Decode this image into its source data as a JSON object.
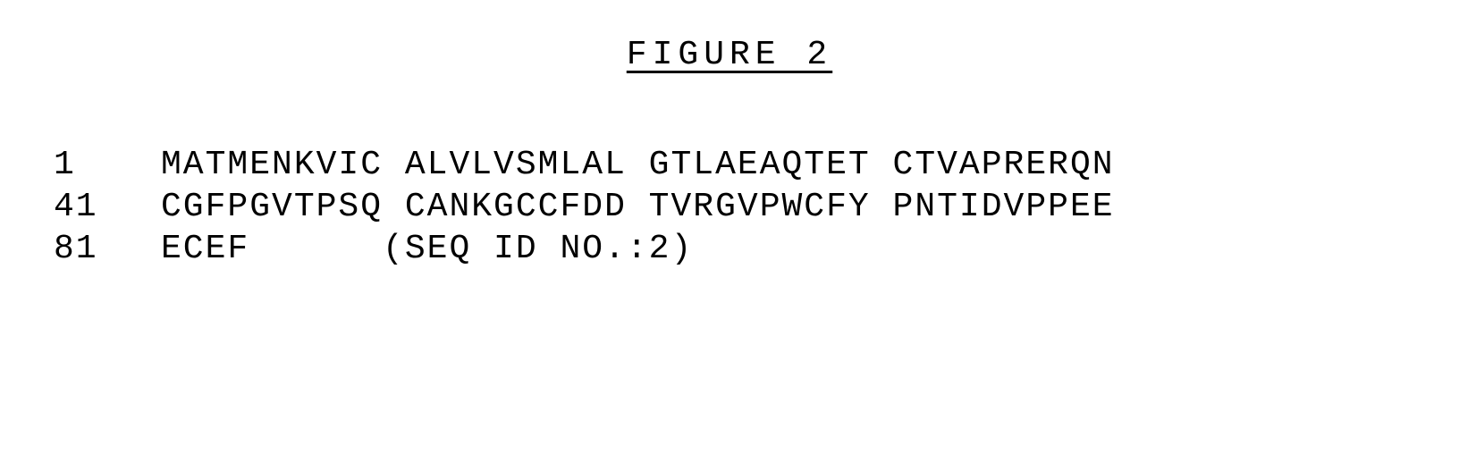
{
  "figure": {
    "title": "FIGURE 2"
  },
  "sequence": {
    "rows": [
      {
        "position": "1",
        "line": "MATMENKVIC ALVLVSMLAL GTLAEAQTET CTVAPRERQN"
      },
      {
        "position": "41",
        "line": "CGFPGVTPSQ CANKGCCFDD TVRGVPWCFY PNTIDVPPEE"
      },
      {
        "position": "81",
        "line": "ECEF      (SEQ ID NO.:2)"
      }
    ]
  },
  "styling": {
    "font_family": "Courier New",
    "text_color": "#000000",
    "background_color": "#ffffff",
    "title_fontsize": 38,
    "sequence_fontsize": 38,
    "title_letter_spacing": 6,
    "sequence_letter_spacing": 2
  }
}
